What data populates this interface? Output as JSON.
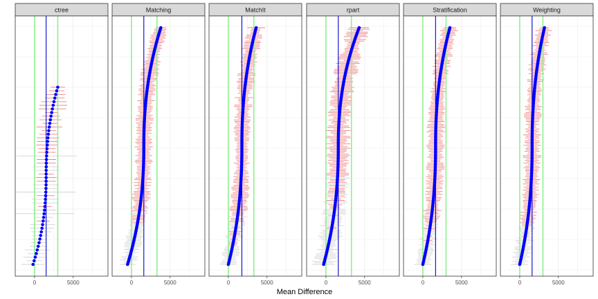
{
  "chart_data": {
    "type": "scatter",
    "subtype": "faceted-forest-plot",
    "title": "",
    "xlabel": "Mean Difference",
    "ylabel": "",
    "xlim": [
      -2500,
      9500
    ],
    "x_ticks": [
      0,
      5000
    ],
    "x_tick_labels": [
      "0",
      "5000"
    ],
    "grid": true,
    "legend": "none",
    "colors": {
      "point": "#0000ff",
      "mean_line": "#0000cd",
      "reference_line": "#90ee90",
      "interval_significant": "#f08080",
      "interval_nonsignificant": "#d3d3d3",
      "strip_fill": "#d9d9d9",
      "panel_border": "#333333",
      "grid": "#ebebeb"
    },
    "panels": [
      {
        "label": "ctree",
        "n_points": 50,
        "estimate_range": [
          -200,
          3000
        ],
        "estimate_median": 1500,
        "interval_halfwidth": [
          800,
          1800
        ],
        "vertical_lines": {
          "reference": [
            0,
            3000
          ],
          "mean": 1500
        }
      },
      {
        "label": "Matching",
        "n_points": 160,
        "estimate_range": [
          -500,
          3800
        ],
        "estimate_median": 1600,
        "interval_halfwidth": [
          500,
          1200
        ],
        "vertical_lines": {
          "reference": [
            0,
            3300
          ],
          "mean": 1600
        }
      },
      {
        "label": "MatchIt",
        "n_points": 160,
        "estimate_range": [
          0,
          3600
        ],
        "estimate_median": 1750,
        "interval_halfwidth": [
          500,
          1200
        ],
        "vertical_lines": {
          "reference": [
            0,
            3300
          ],
          "mean": 1750
        }
      },
      {
        "label": "rpart",
        "n_points": 160,
        "estimate_range": [
          -300,
          4300
        ],
        "estimate_median": 1600,
        "interval_halfwidth": [
          600,
          1600
        ],
        "vertical_lines": {
          "reference": [
            0,
            3300
          ],
          "mean": 1600
        }
      },
      {
        "label": "Stratification",
        "n_points": 160,
        "estimate_range": [
          0,
          3500
        ],
        "estimate_median": 1650,
        "interval_halfwidth": [
          500,
          1200
        ],
        "vertical_lines": {
          "reference": [
            0,
            3000
          ],
          "mean": 1650
        }
      },
      {
        "label": "Weighting",
        "n_points": 160,
        "estimate_range": [
          0,
          3200
        ],
        "estimate_median": 1600,
        "interval_halfwidth": [
          500,
          1200
        ],
        "vertical_lines": {
          "reference": [
            0,
            3000
          ],
          "mean": 1600
        }
      }
    ]
  }
}
